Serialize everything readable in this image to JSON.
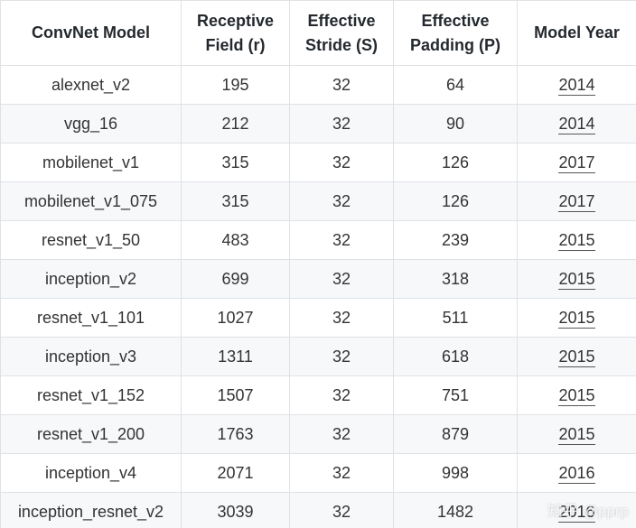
{
  "table": {
    "headers": [
      "ConvNet Model",
      "Receptive Field (r)",
      "Effective Stride (S)",
      "Effective Padding (P)",
      "Model Year"
    ],
    "rows": [
      [
        "alexnet_v2",
        "195",
        "32",
        "64",
        "2014"
      ],
      [
        "vgg_16",
        "212",
        "32",
        "90",
        "2014"
      ],
      [
        "mobilenet_v1",
        "315",
        "32",
        "126",
        "2017"
      ],
      [
        "mobilenet_v1_075",
        "315",
        "32",
        "126",
        "2017"
      ],
      [
        "resnet_v1_50",
        "483",
        "32",
        "239",
        "2015"
      ],
      [
        "inception_v2",
        "699",
        "32",
        "318",
        "2015"
      ],
      [
        "resnet_v1_101",
        "1027",
        "32",
        "511",
        "2015"
      ],
      [
        "inception_v3",
        "1311",
        "32",
        "618",
        "2015"
      ],
      [
        "resnet_v1_152",
        "1507",
        "32",
        "751",
        "2015"
      ],
      [
        "resnet_v1_200",
        "1763",
        "32",
        "879",
        "2015"
      ],
      [
        "inception_v4",
        "2071",
        "32",
        "998",
        "2016"
      ],
      [
        "inception_resnet_v2",
        "3039",
        "32",
        "1482",
        "2016"
      ]
    ]
  },
  "watermark": "知乎 @pprp"
}
